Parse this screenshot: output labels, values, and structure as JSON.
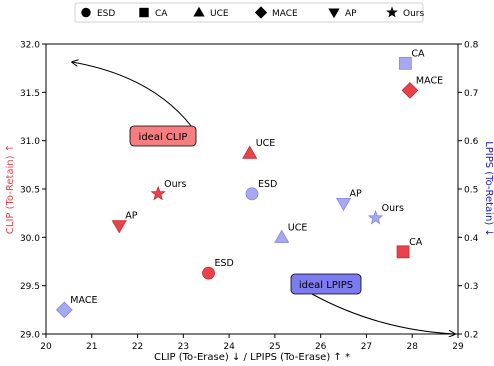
{
  "chart_data": {
    "type": "scatter",
    "xlabel": "CLIP (To-Erase) ↓ / LPIPS (To-Erase) ↑ *",
    "ylabel_left": "CLIP (To-Retain) ↑",
    "ylabel_right": "LPIPS (To-Retain) ↓",
    "xlim": [
      20,
      29
    ],
    "ylim_left": [
      29.0,
      32.0
    ],
    "ylim_right": [
      0.2,
      0.8
    ],
    "x_ticks": [
      "20",
      "21",
      "22",
      "23",
      "24",
      "25",
      "26",
      "27",
      "28",
      "29"
    ],
    "y_left_ticks": [
      "29.0",
      "29.5",
      "30.0",
      "30.5",
      "31.0",
      "31.5",
      "32.0"
    ],
    "y_right_ticks": [
      "0.2",
      "0.3",
      "0.4",
      "0.5",
      "0.6",
      "0.7",
      "0.8"
    ],
    "grid": false,
    "legend": {
      "placement": "top-center",
      "entries": [
        {
          "name": "ESD",
          "marker": "circle"
        },
        {
          "name": "CA",
          "marker": "square"
        },
        {
          "name": "UCE",
          "marker": "triangle-up"
        },
        {
          "name": "MACE",
          "marker": "diamond"
        },
        {
          "name": "AP",
          "marker": "triangle-down"
        },
        {
          "name": "Ours",
          "marker": "star"
        }
      ]
    },
    "colors": {
      "clip": "#e8434b",
      "lpips": "#a6a8f2",
      "clip_axis": "#e8434b",
      "lpips_axis": "#2020c8",
      "ideal_clip_box": "#f47e80",
      "ideal_lpips_box": "#7c7cf0"
    },
    "series": [
      {
        "metric": "CLIP",
        "axis": "left",
        "points": [
          {
            "method": "ESD",
            "marker": "circle",
            "x": 23.55,
            "y": 29.63
          },
          {
            "method": "CA",
            "marker": "square",
            "x": 27.8,
            "y": 29.85
          },
          {
            "method": "UCE",
            "marker": "triangle-up",
            "x": 24.45,
            "y": 30.87
          },
          {
            "method": "MACE",
            "marker": "diamond",
            "x": 27.95,
            "y": 31.52
          },
          {
            "method": "AP",
            "marker": "triangle-down",
            "x": 21.6,
            "y": 30.12
          },
          {
            "method": "Ours",
            "marker": "star",
            "x": 22.45,
            "y": 30.45
          }
        ]
      },
      {
        "metric": "LPIPS",
        "axis": "right",
        "points": [
          {
            "method": "ESD",
            "marker": "circle",
            "x": 24.5,
            "y": 0.49
          },
          {
            "method": "CA",
            "marker": "square",
            "x": 27.85,
            "y": 0.76
          },
          {
            "method": "UCE",
            "marker": "triangle-up",
            "x": 25.15,
            "y": 0.4
          },
          {
            "method": "MACE",
            "marker": "diamond",
            "x": 20.4,
            "y": 0.25
          },
          {
            "method": "AP",
            "marker": "triangle-down",
            "x": 26.5,
            "y": 0.47
          },
          {
            "method": "Ours",
            "marker": "star",
            "x": 27.2,
            "y": 0.44
          }
        ]
      }
    ],
    "annotations": [
      {
        "text": "ideal CLIP"
      },
      {
        "text": "ideal LPIPS"
      }
    ]
  }
}
